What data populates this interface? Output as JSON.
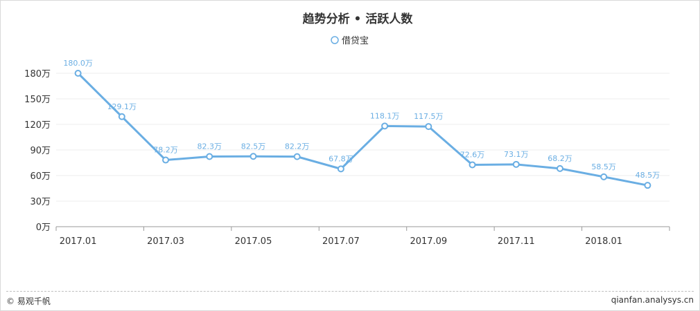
{
  "chart_data": {
    "type": "line",
    "title": "趋势分析 • 活跃人数",
    "legend_position": "top-center",
    "grid": true,
    "x_tick_labels": [
      "2017.01",
      "2017.03",
      "2017.05",
      "2017.07",
      "2017.09",
      "2017.11",
      "2018.01"
    ],
    "y_tick_labels": [
      "0万",
      "30万",
      "60万",
      "90万",
      "120万",
      "150万",
      "180万"
    ],
    "ylim": [
      0,
      180
    ],
    "unit": "万",
    "categories": [
      "2017.01",
      "2017.02",
      "2017.03",
      "2017.04",
      "2017.05",
      "2017.06",
      "2017.07",
      "2017.08",
      "2017.09",
      "2017.10",
      "2017.11",
      "2017.12",
      "2018.01",
      "2018.02"
    ],
    "series": [
      {
        "name": "借贷宝",
        "color": "#6aaee3",
        "values": [
          180.0,
          129.1,
          78.2,
          82.3,
          82.5,
          82.2,
          67.8,
          118.1,
          117.5,
          72.6,
          73.1,
          68.2,
          58.5,
          48.5
        ],
        "data_labels": [
          "180.0万",
          "129.1万",
          "78.2万",
          "82.3万",
          "82.5万",
          "82.2万",
          "67.8万",
          "118.1万",
          "117.5万",
          "72.6万",
          "73.1万",
          "68.2万",
          "58.5万",
          "48.5万"
        ]
      }
    ]
  },
  "footer": {
    "left": "© 易观千帆",
    "right": "qianfan.analysys.cn"
  }
}
